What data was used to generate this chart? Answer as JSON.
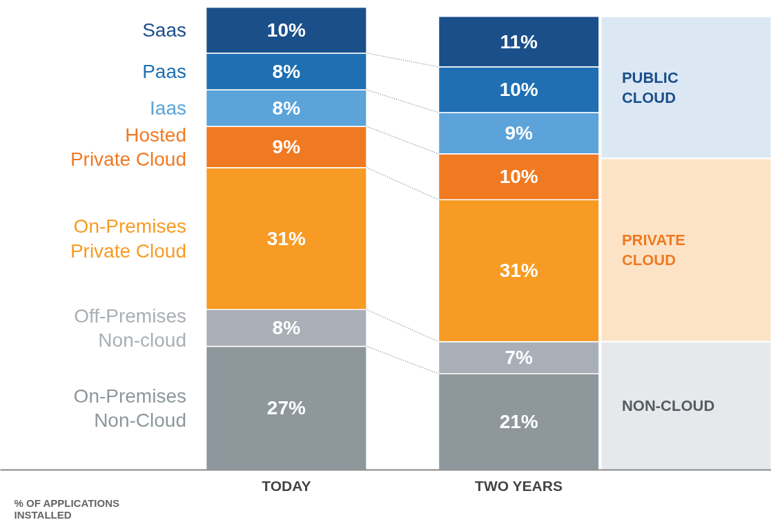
{
  "chart_data": {
    "type": "bar",
    "stacked": true,
    "relative": false,
    "categories": [
      "TODAY",
      "TWO YEARS"
    ],
    "annotations": [
      "% OF APPLICATIONS INSTALLED"
    ],
    "series": [
      {
        "name": "On-Premises Non-Cloud",
        "color": "#8d979c",
        "values": [
          27,
          21
        ],
        "value_labels": [
          "27%",
          "21%"
        ]
      },
      {
        "name": "Off-Premises Non-cloud",
        "color": "#a9afb6",
        "values": [
          8,
          7
        ],
        "value_labels": [
          "8%",
          "7%"
        ]
      },
      {
        "name": "On-Premises Private Cloud",
        "color": "#f79b24",
        "values": [
          31,
          31
        ],
        "value_labels": [
          "31%",
          "31%"
        ]
      },
      {
        "name": "Hosted Private Cloud",
        "color": "#f07a22",
        "values": [
          9,
          10
        ],
        "value_labels": [
          "9%",
          "10%"
        ]
      },
      {
        "name": "Iaas",
        "color": "#5ba3d9",
        "values": [
          8,
          9
        ],
        "value_labels": [
          "8%",
          "9%"
        ]
      },
      {
        "name": "Paas",
        "color": "#1f6fb2",
        "values": [
          8,
          10
        ],
        "value_labels": [
          "8%",
          "10%"
        ]
      },
      {
        "name": "Saas",
        "color": "#1b4f8a",
        "values": [
          10,
          11
        ],
        "value_labels": [
          "10%",
          "11%"
        ]
      }
    ],
    "bands": [
      {
        "axis": "y",
        "from": 68,
        "to": 99,
        "label": "PUBLIC CLOUD",
        "color": "#dbe8f4"
      },
      {
        "axis": "y",
        "from": 28,
        "to": 68,
        "label": "PRIVATE CLOUD",
        "color": "#fde3c6"
      },
      {
        "axis": "y",
        "from": 0,
        "to": 28,
        "label": "NON-CLOUD",
        "color": "#e6e9ec"
      }
    ]
  }
}
